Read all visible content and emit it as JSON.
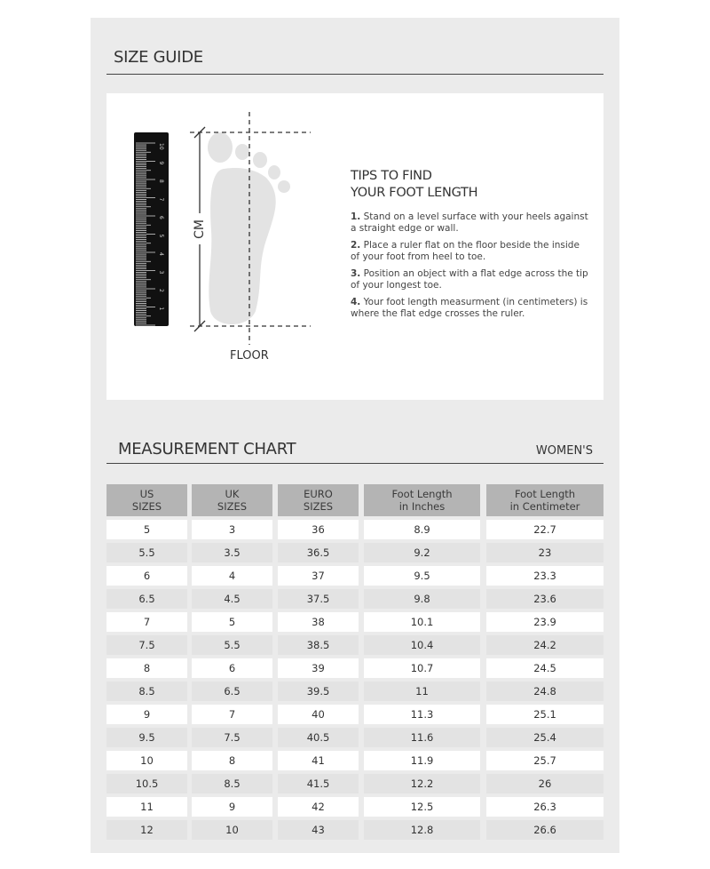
{
  "size_guide": {
    "title": "SIZE GUIDE",
    "diagram": {
      "axis_label": "CM",
      "floor_label": "FLOOR"
    },
    "tips_title_line1": "TIPS TO FIND",
    "tips_title_line2": "YOUR FOOT LENGTH",
    "tips": [
      {
        "num": "1.",
        "text": " Stand on a level surface with your heels against a straight edge or wall."
      },
      {
        "num": "2.",
        "text": " Place a ruler flat on the floor beside the inside of your foot from heel to toe."
      },
      {
        "num": "3.",
        "text": " Position an object with a flat edge across the tip of your longest toe."
      },
      {
        "num": "4.",
        "text": " Your foot length measurment (in centimeters) is where the flat edge crosses the ruler."
      }
    ]
  },
  "measurement_chart": {
    "title": "MEASUREMENT CHART",
    "category": "WOMEN'S",
    "headers": [
      [
        "US",
        "SIZES"
      ],
      [
        "UK",
        "SIZES"
      ],
      [
        "EURO",
        "SIZES"
      ],
      [
        "Foot Length",
        "in Inches"
      ],
      [
        "Foot Length",
        "in Centimeter"
      ]
    ],
    "rows": [
      [
        "5",
        "3",
        "36",
        "8.9",
        "22.7"
      ],
      [
        "5.5",
        "3.5",
        "36.5",
        "9.2",
        "23"
      ],
      [
        "6",
        "4",
        "37",
        "9.5",
        "23.3"
      ],
      [
        "6.5",
        "4.5",
        "37.5",
        "9.8",
        "23.6"
      ],
      [
        "7",
        "5",
        "38",
        "10.1",
        "23.9"
      ],
      [
        "7.5",
        "5.5",
        "38.5",
        "10.4",
        "24.2"
      ],
      [
        "8",
        "6",
        "39",
        "10.7",
        "24.5"
      ],
      [
        "8.5",
        "6.5",
        "39.5",
        "11",
        "24.8"
      ],
      [
        "9",
        "7",
        "40",
        "11.3",
        "25.1"
      ],
      [
        "9.5",
        "7.5",
        "40.5",
        "11.6",
        "25.4"
      ],
      [
        "10",
        "8",
        "41",
        "11.9",
        "25.7"
      ],
      [
        "10.5",
        "8.5",
        "41.5",
        "12.2",
        "26"
      ],
      [
        "11",
        "9",
        "42",
        "12.5",
        "26.3"
      ],
      [
        "12",
        "10",
        "43",
        "12.8",
        "26.6"
      ]
    ]
  },
  "colors": {
    "panel": "#ebebeb",
    "header": "#b4b4b4",
    "row_alt": "#e3e3e3",
    "row": "#ffffff"
  }
}
